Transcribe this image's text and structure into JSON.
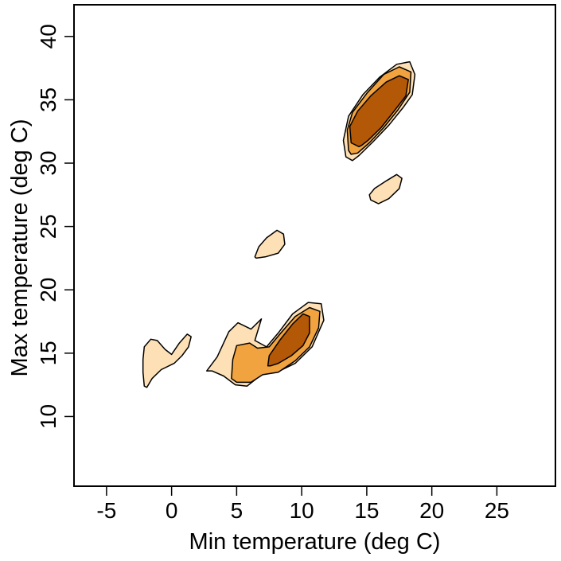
{
  "chart_data": {
    "type": "contour",
    "title": "",
    "xlabel": "Min temperature (deg C)",
    "ylabel": "Max temperature (deg C)",
    "xlim": [
      -7.5,
      29.5
    ],
    "ylim": [
      4.5,
      42.5
    ],
    "xticks": [
      -5,
      0,
      5,
      10,
      15,
      20,
      25
    ],
    "yticks": [
      10,
      15,
      20,
      25,
      30,
      35,
      40
    ],
    "xtick_labels": [
      "-5",
      "0",
      "5",
      "10",
      "15",
      "20",
      "25"
    ],
    "ytick_labels": [
      "10",
      "15",
      "20",
      "25",
      "30",
      "35",
      "40"
    ],
    "grid": false,
    "legend": "none",
    "levels": [
      {
        "name": "outer",
        "color": "#FEE0B6"
      },
      {
        "name": "middle",
        "color": "#F1A340"
      },
      {
        "name": "inner",
        "color": "#B35806"
      }
    ],
    "regions": [
      {
        "level": 0,
        "points": [
          [
            -2.1,
            12.4
          ],
          [
            -2.2,
            13.5
          ],
          [
            -2.2,
            14.5
          ],
          [
            -2.1,
            15.5
          ],
          [
            -1.6,
            16.1
          ],
          [
            -1.1,
            16.0
          ],
          [
            -0.5,
            15.3
          ],
          [
            0.0,
            14.9
          ],
          [
            0.6,
            15.8
          ],
          [
            1.2,
            16.5
          ],
          [
            1.5,
            16.3
          ],
          [
            1.3,
            15.5
          ],
          [
            0.8,
            14.8
          ],
          [
            0.2,
            14.2
          ],
          [
            -0.8,
            13.7
          ],
          [
            -1.5,
            13.0
          ],
          [
            -1.9,
            12.3
          ]
        ]
      },
      {
        "level": 0,
        "points": [
          [
            2.7,
            13.6
          ],
          [
            3.5,
            14.7
          ],
          [
            4.4,
            16.7
          ],
          [
            5.1,
            17.4
          ],
          [
            6.1,
            16.9
          ],
          [
            6.9,
            17.7
          ],
          [
            6.4,
            16.0
          ],
          [
            7.3,
            15.5
          ],
          [
            8.2,
            16.6
          ],
          [
            9.3,
            18.1
          ],
          [
            10.5,
            19.0
          ],
          [
            11.5,
            18.9
          ],
          [
            11.7,
            17.6
          ],
          [
            10.8,
            15.5
          ],
          [
            9.5,
            14.2
          ],
          [
            8.1,
            13.5
          ],
          [
            6.9,
            13.3
          ],
          [
            5.8,
            12.4
          ],
          [
            4.9,
            12.5
          ],
          [
            4.0,
            13.2
          ],
          [
            3.1,
            13.6
          ]
        ]
      },
      {
        "level": 0,
        "points": [
          [
            6.4,
            22.6
          ],
          [
            6.7,
            23.4
          ],
          [
            7.3,
            24.1
          ],
          [
            8.1,
            24.7
          ],
          [
            8.6,
            24.4
          ],
          [
            8.7,
            23.6
          ],
          [
            8.2,
            22.9
          ],
          [
            7.2,
            22.6
          ],
          [
            6.5,
            22.5
          ]
        ]
      },
      {
        "level": 0,
        "points": [
          [
            15.2,
            27.5
          ],
          [
            15.6,
            28.0
          ],
          [
            16.5,
            28.6
          ],
          [
            17.3,
            29.1
          ],
          [
            17.7,
            28.8
          ],
          [
            17.5,
            28.0
          ],
          [
            16.7,
            27.2
          ],
          [
            15.9,
            26.8
          ],
          [
            15.3,
            27.1
          ]
        ]
      },
      {
        "level": 0,
        "points": [
          [
            13.4,
            30.5
          ],
          [
            13.2,
            31.8
          ],
          [
            13.6,
            33.7
          ],
          [
            14.7,
            35.4
          ],
          [
            16.0,
            36.8
          ],
          [
            17.3,
            37.8
          ],
          [
            18.3,
            38.0
          ],
          [
            18.7,
            37.0
          ],
          [
            18.5,
            35.4
          ],
          [
            17.8,
            34.4
          ],
          [
            16.7,
            33.0
          ],
          [
            15.5,
            31.7
          ],
          [
            14.4,
            30.6
          ],
          [
            13.9,
            30.2
          ]
        ]
      },
      {
        "level": 1,
        "points": [
          [
            4.6,
            13.0
          ],
          [
            4.7,
            14.5
          ],
          [
            5.0,
            15.6
          ],
          [
            6.0,
            15.8
          ],
          [
            6.6,
            15.4
          ],
          [
            7.5,
            15.5
          ],
          [
            8.4,
            16.6
          ],
          [
            9.5,
            17.9
          ],
          [
            10.6,
            18.6
          ],
          [
            11.4,
            18.3
          ],
          [
            11.3,
            17.0
          ],
          [
            10.6,
            15.5
          ],
          [
            9.5,
            14.4
          ],
          [
            8.2,
            13.5
          ],
          [
            7.0,
            13.3
          ],
          [
            6.1,
            12.7
          ],
          [
            5.0,
            12.7
          ]
        ]
      },
      {
        "level": 1,
        "points": [
          [
            13.6,
            31.0
          ],
          [
            13.5,
            32.6
          ],
          [
            13.9,
            34.0
          ],
          [
            15.0,
            35.5
          ],
          [
            16.3,
            37.0
          ],
          [
            17.5,
            37.6
          ],
          [
            18.4,
            37.2
          ],
          [
            18.3,
            35.6
          ],
          [
            17.4,
            34.2
          ],
          [
            16.3,
            32.8
          ],
          [
            15.2,
            31.6
          ],
          [
            14.3,
            30.8
          ],
          [
            13.8,
            30.7
          ]
        ]
      },
      {
        "level": 2,
        "points": [
          [
            7.4,
            14.0
          ],
          [
            7.5,
            14.8
          ],
          [
            8.3,
            16.0
          ],
          [
            9.3,
            17.3
          ],
          [
            10.1,
            18.1
          ],
          [
            10.6,
            17.9
          ],
          [
            10.6,
            16.6
          ],
          [
            10.1,
            15.6
          ],
          [
            9.2,
            14.8
          ],
          [
            8.2,
            14.2
          ],
          [
            7.6,
            14.0
          ]
        ]
      },
      {
        "level": 2,
        "points": [
          [
            14.4,
            31.3
          ],
          [
            13.8,
            31.6
          ],
          [
            13.7,
            32.9
          ],
          [
            14.3,
            34.1
          ],
          [
            15.3,
            35.3
          ],
          [
            16.5,
            36.4
          ],
          [
            17.5,
            36.9
          ],
          [
            18.2,
            36.6
          ],
          [
            18.0,
            35.3
          ],
          [
            17.1,
            34.1
          ],
          [
            16.1,
            32.8
          ],
          [
            15.1,
            31.8
          ],
          [
            14.6,
            31.4
          ]
        ]
      }
    ]
  }
}
